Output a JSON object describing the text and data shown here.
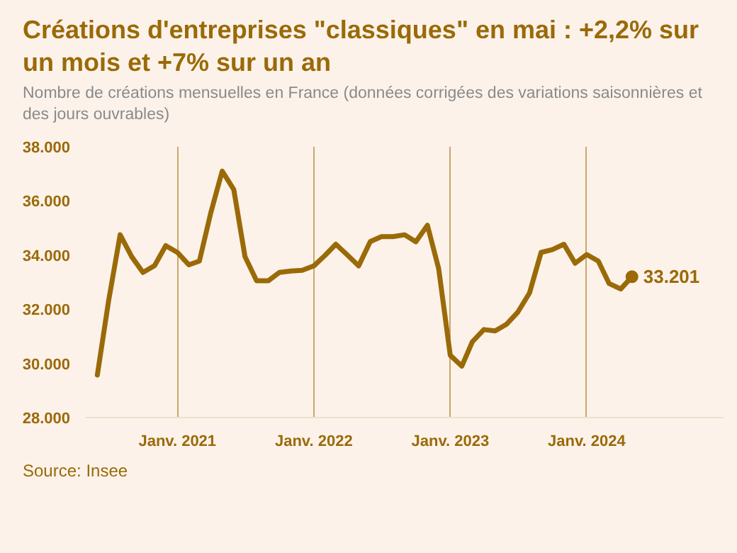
{
  "chart_data": {
    "type": "line",
    "title": "Créations d'entreprises \"classiques\" en mai : +2,2% sur un mois et +7% sur un an",
    "subtitle": "Nombre de créations mensuelles en France (données corrigées des variations saisonnières et des jours ouvrables)",
    "annotations": [
      {
        "text": "33.201",
        "x": "2024-05",
        "y": 33201
      },
      "Source: Insee"
    ],
    "x": [
      "2020-06",
      "2020-07",
      "2020-08",
      "2020-09",
      "2020-10",
      "2020-11",
      "2020-12",
      "2021-01",
      "2021-02",
      "2021-03",
      "2021-04",
      "2021-05",
      "2021-06",
      "2021-07",
      "2021-08",
      "2021-09",
      "2021-10",
      "2021-11",
      "2021-12",
      "2022-01",
      "2022-02",
      "2022-03",
      "2022-04",
      "2022-05",
      "2022-06",
      "2022-07",
      "2022-08",
      "2022-09",
      "2022-10",
      "2022-11",
      "2022-12",
      "2023-01",
      "2023-02",
      "2023-03",
      "2023-04",
      "2023-05",
      "2023-06",
      "2023-07",
      "2023-08",
      "2023-09",
      "2023-10",
      "2023-11",
      "2023-12",
      "2024-01",
      "2024-02",
      "2024-03",
      "2024-04",
      "2024-05"
    ],
    "series": [
      {
        "color": "#9a6a08",
        "values": [
          29570,
          32300,
          34750,
          33940,
          33360,
          33610,
          34350,
          34100,
          33640,
          33780,
          35590,
          37100,
          36420,
          33940,
          33050,
          33050,
          33360,
          33410,
          33440,
          33600,
          34000,
          34400,
          34000,
          33600,
          34500,
          34680,
          34680,
          34750,
          34490,
          35100,
          33500,
          30300,
          29900,
          30800,
          31250,
          31200,
          31450,
          31900,
          32600,
          34100,
          34200,
          34400,
          33700,
          34020,
          33780,
          32950,
          32750,
          33201
        ]
      }
    ],
    "xticks": [
      {
        "value": "2021-01",
        "label": "Janv. 2021"
      },
      {
        "value": "2022-01",
        "label": "Janv. 2022"
      },
      {
        "value": "2023-01",
        "label": "Janv. 2023"
      },
      {
        "value": "2024-01",
        "label": "Janv. 2024"
      }
    ],
    "xlim": [
      "2020-05",
      "2025-01"
    ],
    "ylim": [
      28000,
      38000
    ],
    "yticks": [
      {
        "value": 28000,
        "label": "28.000"
      },
      {
        "value": 30000,
        "label": "30.000"
      },
      {
        "value": 32000,
        "label": "32.000"
      },
      {
        "value": 34000,
        "label": "34.000"
      },
      {
        "value": 36000,
        "label": "36.000"
      },
      {
        "value": 38000,
        "label": "38.000"
      }
    ],
    "grid": "x",
    "line_style": "solid"
  }
}
